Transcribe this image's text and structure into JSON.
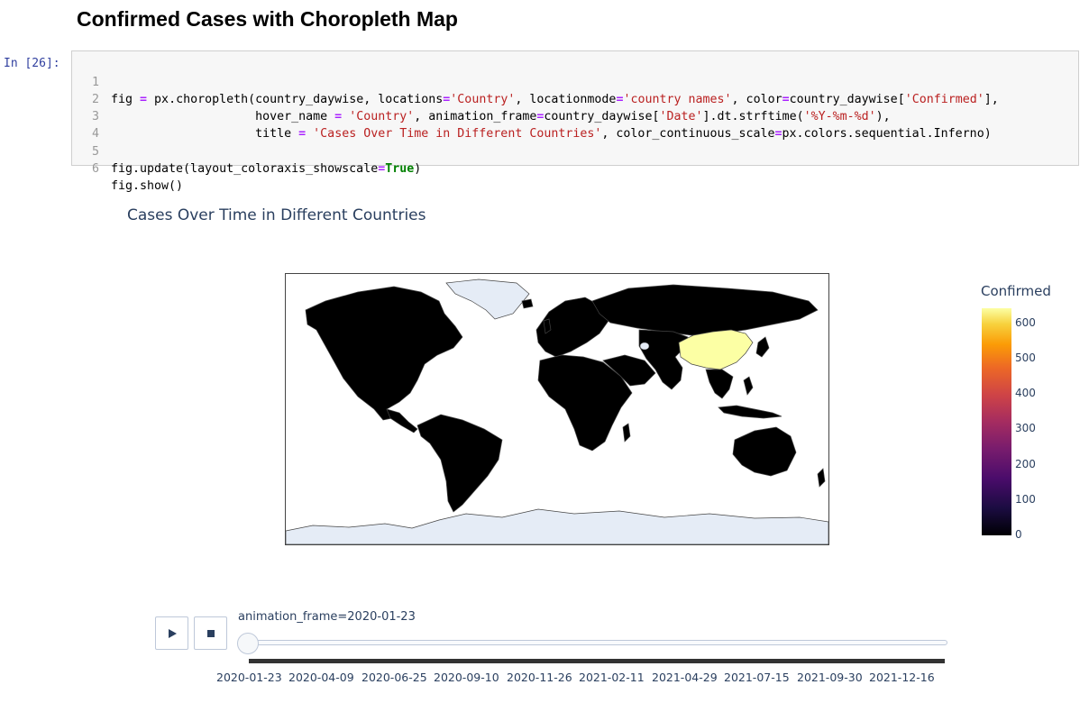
{
  "notebook": {
    "heading": "Confirmed Cases with Choropleth Map",
    "prompt": "In [26]:",
    "code_lines": [
      {
        "n": "1"
      },
      {
        "n": "2"
      },
      {
        "n": "3"
      },
      {
        "n": "4"
      },
      {
        "n": "5"
      },
      {
        "n": "6"
      }
    ],
    "code": {
      "l1_a": "fig ",
      "l1_op": "=",
      "l1_b": " px.choropleth(country_daywise, locations",
      "l1_op2": "=",
      "l1_s1": "'Country'",
      "l1_c": ", locationmode",
      "l1_op3": "=",
      "l1_s2": "'country names'",
      "l1_d": ", color",
      "l1_op4": "=",
      "l1_e": "country_daywise[",
      "l1_s3": "'Confirmed'",
      "l1_f": "],",
      "l2_a": "                    hover_name ",
      "l2_op": "=",
      "l2_b": " ",
      "l2_s1": "'Country'",
      "l2_c": ", animation_frame",
      "l2_op2": "=",
      "l2_d": "country_daywise[",
      "l2_s2": "'Date'",
      "l2_e": "].dt.strftime(",
      "l2_s3": "'%Y-%m-%d'",
      "l2_f": "),",
      "l3_a": "                    title ",
      "l3_op": "=",
      "l3_b": " ",
      "l3_s1": "'Cases Over Time in Different Countries'",
      "l3_c": ", color_continuous_scale",
      "l3_op2": "=",
      "l3_d": "px.colors.sequential.Inferno)",
      "l5_a": "fig.update(layout_coloraxis_showscale",
      "l5_op": "=",
      "l5_true": "True",
      "l5_b": ")",
      "l6_a": "fig.show()"
    }
  },
  "figure": {
    "title": "Cases Over Time in Different Countries",
    "colorbar": {
      "title": "Confirmed",
      "ticks": [
        "600",
        "500",
        "400",
        "300",
        "200",
        "100",
        "0"
      ],
      "scale": "Inferno"
    },
    "highlight_color": "#fcffa4",
    "land_color": "#000000",
    "ice_color": "#e5ecf6"
  },
  "animation": {
    "play_icon": "play-icon",
    "stop_icon": "stop-icon",
    "current_label": "animation_frame=2020-01-23",
    "tick_labels": [
      "2020-01-23",
      "2020-04-09",
      "2020-06-25",
      "2020-09-10",
      "2020-11-26",
      "2021-02-11",
      "2021-04-29",
      "2021-07-15",
      "2021-09-30",
      "2021-12-16"
    ]
  }
}
